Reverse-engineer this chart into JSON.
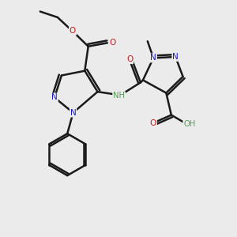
{
  "background_color": "#ebebeb",
  "bond_color": "#1a1a1a",
  "bond_width": 1.8,
  "atom_colors": {
    "C": "#1a1a1a",
    "N": "#1919cc",
    "O": "#cc1919",
    "H": "#5a9a5a"
  },
  "figsize": [
    3.0,
    3.0
  ],
  "dpi": 100,
  "xlim": [
    0,
    10
  ],
  "ylim": [
    0,
    10
  ]
}
